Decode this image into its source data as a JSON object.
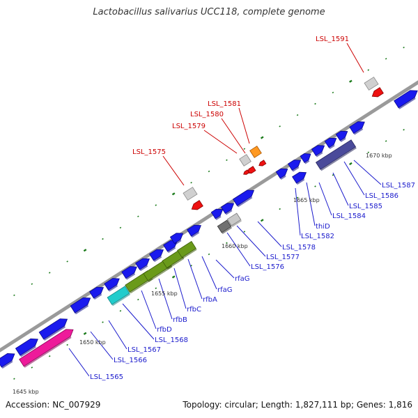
{
  "title": "Lactobacillus salivarius UCC118, complete genome",
  "footer": {
    "accession": "Accession: NC_007929",
    "summary": "Topology: circular; Length: 1,827,111 bp; Genes: 1,816"
  },
  "colors": {
    "backbone": "#8c8c8c",
    "forward_gene": "#1a1aee",
    "label_blue": "#1a1acc",
    "label_red": "#cc0000",
    "tick": "#1a7a1a"
  },
  "kbp_labels": [
    "1645 kbp",
    "1650 kbp",
    "1655 kbp",
    "1660 kbp",
    "1665 kbp",
    "1670 kbp"
  ],
  "lower_labels": [
    "LSL_1565",
    "LSL_1566",
    "LSL_1567",
    "LSL_1568",
    "rfbD",
    "rfbB",
    "rfbC",
    "rfbA",
    "rfaG",
    "rfaG",
    "LSL_1576",
    "LSL_1577",
    "LSL_1578",
    "LSL_1582",
    "thiD",
    "LSL_1584",
    "LSL_1585",
    "LSL_1586",
    "LSL_1587"
  ],
  "upper_labels": [
    "LSL_1575",
    "LSL_1579",
    "LSL_1580",
    "LSL_1581",
    "LSL_1591"
  ]
}
